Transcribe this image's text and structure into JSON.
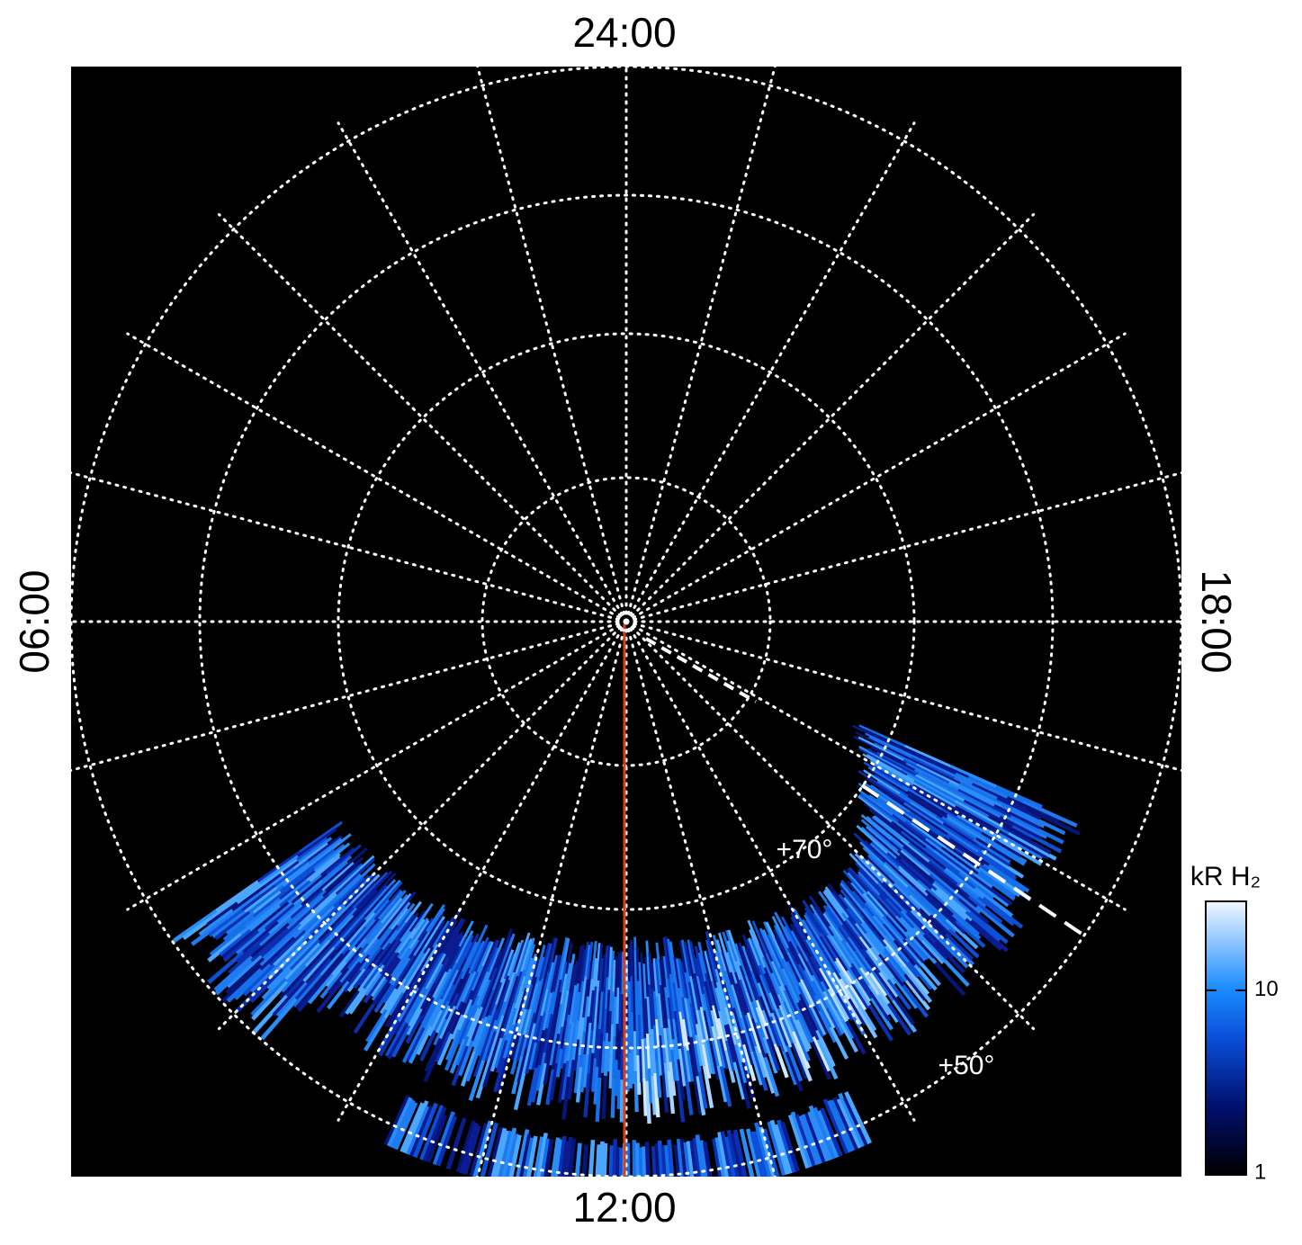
{
  "chart_data": {
    "type": "polar",
    "time_labels": {
      "top": "24:00",
      "bottom": "12:00",
      "left": "06:00",
      "right": "18:00"
    },
    "latitude_labels": [
      "+70°",
      "+50°"
    ],
    "colorbar": {
      "label": "kR H₂",
      "log_scale": true,
      "clim": [
        1,
        30
      ],
      "ticks": [
        1,
        10
      ]
    }
  }
}
